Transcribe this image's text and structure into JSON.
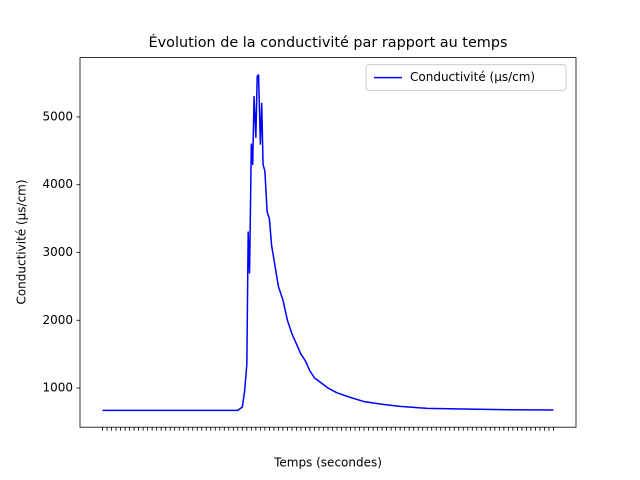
{
  "chart_data": {
    "type": "line",
    "title": "Évolution de la conductivité par rapport au temps",
    "x_label": "Temps (secondes)",
    "y_label": "Conductivité (µs/cm)",
    "x": [
      0,
      30,
      31,
      31.5,
      32,
      32.3,
      32.6,
      33,
      33.3,
      33.6,
      34,
      34.3,
      34.6,
      35,
      35.3,
      35.6,
      36,
      36.5,
      37,
      37.5,
      38,
      39,
      40,
      41,
      42,
      43,
      44,
      45,
      46,
      47,
      48,
      50,
      52,
      55,
      58,
      62,
      66,
      72,
      80,
      90,
      100
    ],
    "series": [
      {
        "name": "Conductivité (µs/cm)",
        "color": "#0000ff",
        "values": [
          670,
          670,
          720,
          950,
          1350,
          3300,
          2700,
          4600,
          4300,
          5300,
          4700,
          5600,
          5620,
          4600,
          5200,
          4300,
          4200,
          3600,
          3500,
          3100,
          2900,
          2500,
          2300,
          2000,
          1800,
          1650,
          1500,
          1400,
          1250,
          1150,
          1100,
          1000,
          930,
          860,
          800,
          760,
          730,
          700,
          690,
          680,
          675
        ]
      }
    ],
    "xlim": [
      -5,
      105
    ],
    "xticks": [
      0,
      1,
      2,
      3,
      4,
      5,
      6,
      7,
      8,
      9,
      10,
      11,
      12,
      13,
      14,
      15,
      16,
      17,
      18,
      19,
      20,
      21,
      22,
      23,
      24,
      25,
      26,
      27,
      28,
      29,
      30,
      31,
      32,
      33,
      34,
      35,
      36,
      37,
      38,
      39,
      40,
      41,
      42,
      43,
      44,
      45,
      46,
      47,
      48,
      49,
      50,
      51,
      52,
      53,
      54,
      55,
      56,
      57,
      58,
      59,
      60,
      61,
      62,
      63,
      64,
      65,
      66,
      67,
      68,
      69,
      70,
      71,
      72,
      73,
      74,
      75,
      76,
      77,
      78,
      79,
      80,
      81,
      82,
      83,
      84,
      85,
      86,
      87,
      88,
      89,
      90,
      91,
      92,
      93,
      94,
      95,
      96,
      97,
      98,
      99,
      100
    ],
    "ylim": [
      422,
      5876
    ],
    "yticks": [
      1000,
      2000,
      3000,
      4000,
      5000
    ],
    "legend": "upper right"
  }
}
